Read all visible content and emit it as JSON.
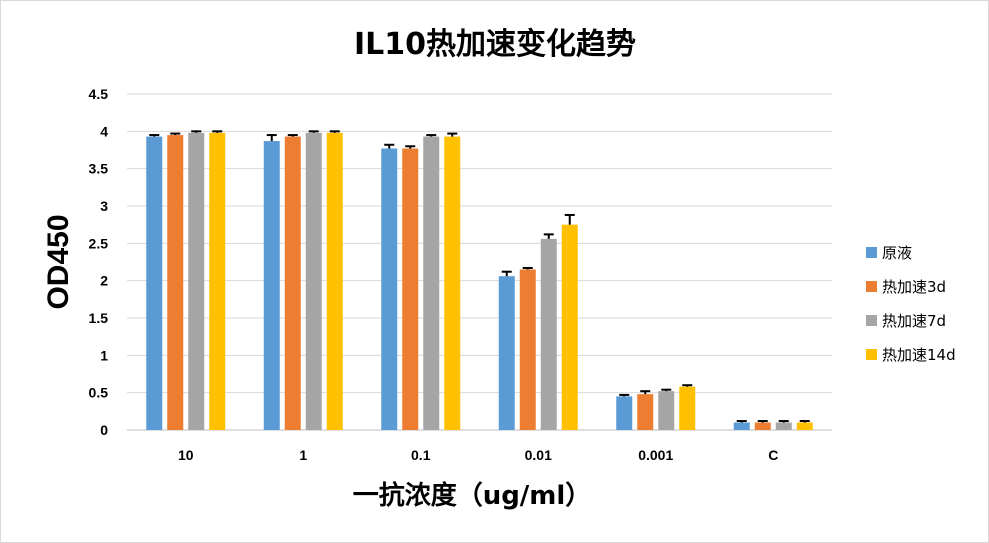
{
  "chart_data": {
    "type": "bar",
    "title": "IL10热加速变化趋势",
    "xlabel": "一抗浓度（ug/ml）",
    "ylabel": "OD450",
    "categories": [
      "10",
      "1",
      "0.1",
      "0.01",
      "0.001",
      "C"
    ],
    "ylim": [
      0,
      4.5
    ],
    "yticks": [
      "0",
      "0.5",
      "1",
      "1.5",
      "2",
      "2.5",
      "3",
      "3.5",
      "4",
      "4.5"
    ],
    "grid": true,
    "legend_position": "right",
    "series": [
      {
        "name": "原液",
        "color": "#5b9bd5",
        "values": [
          3.93,
          3.87,
          3.77,
          2.06,
          0.45,
          0.1
        ],
        "errors": [
          0.02,
          0.08,
          0.05,
          0.06,
          0.02,
          0.02
        ]
      },
      {
        "name": "热加速3d",
        "color": "#ed7d31",
        "values": [
          3.95,
          3.93,
          3.77,
          2.15,
          0.48,
          0.1
        ],
        "errors": [
          0.02,
          0.02,
          0.03,
          0.02,
          0.04,
          0.02
        ]
      },
      {
        "name": "热加速7d",
        "color": "#a5a5a5",
        "values": [
          3.98,
          3.98,
          3.93,
          2.56,
          0.52,
          0.1
        ],
        "errors": [
          0.02,
          0.02,
          0.02,
          0.06,
          0.02,
          0.02
        ]
      },
      {
        "name": "热加速14d",
        "color": "#ffc000",
        "values": [
          3.98,
          3.98,
          3.93,
          2.75,
          0.58,
          0.1
        ],
        "errors": [
          0.02,
          0.02,
          0.04,
          0.13,
          0.02,
          0.02
        ]
      }
    ]
  }
}
